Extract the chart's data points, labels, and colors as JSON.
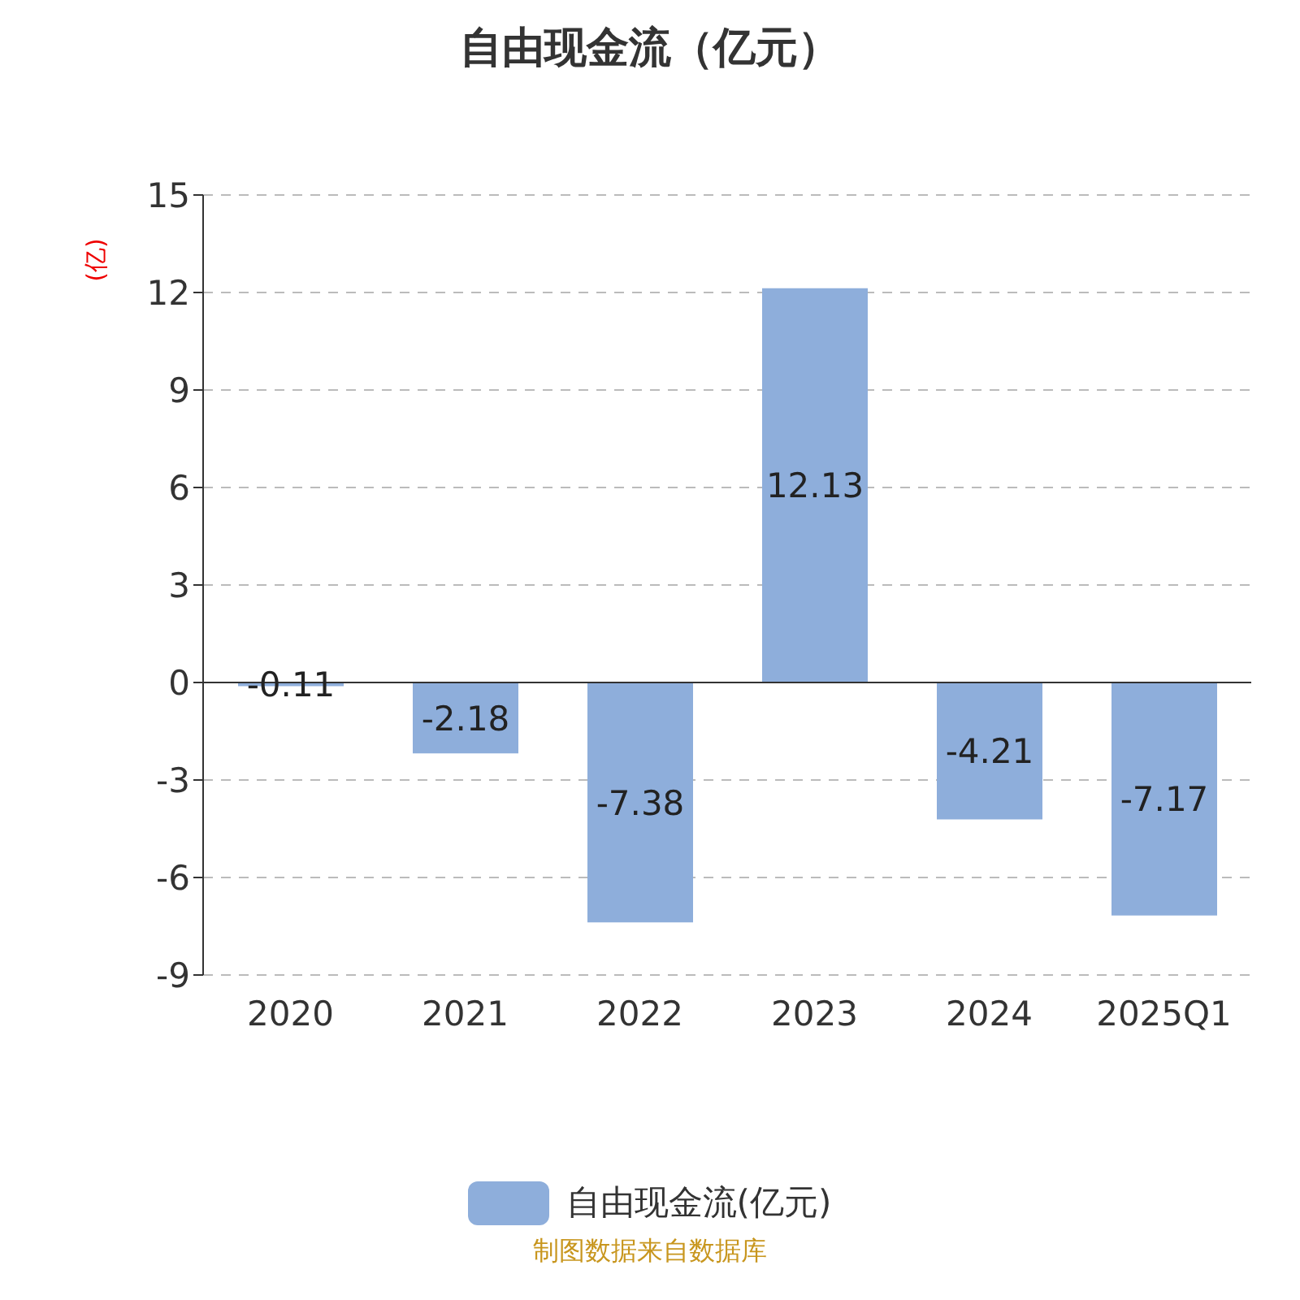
{
  "chart_data": {
    "type": "bar",
    "title": "自由现金流（亿元）",
    "ylabel": "(亿)",
    "categories": [
      "2020",
      "2021",
      "2022",
      "2023",
      "2024",
      "2025Q1"
    ],
    "series": [
      {
        "name": "自由现金流(亿元)",
        "color": "#8eaedb",
        "values": [
          -0.11,
          -2.18,
          -7.38,
          12.13,
          -4.21,
          -7.17
        ]
      }
    ],
    "ylim": [
      -9,
      15
    ],
    "yticks": [
      -9,
      -6,
      -3,
      0,
      3,
      6,
      9,
      12,
      15
    ],
    "grid": "y",
    "legend": "bottom",
    "data_labels": true,
    "annotations": [
      "制图数据来自数据库"
    ]
  }
}
